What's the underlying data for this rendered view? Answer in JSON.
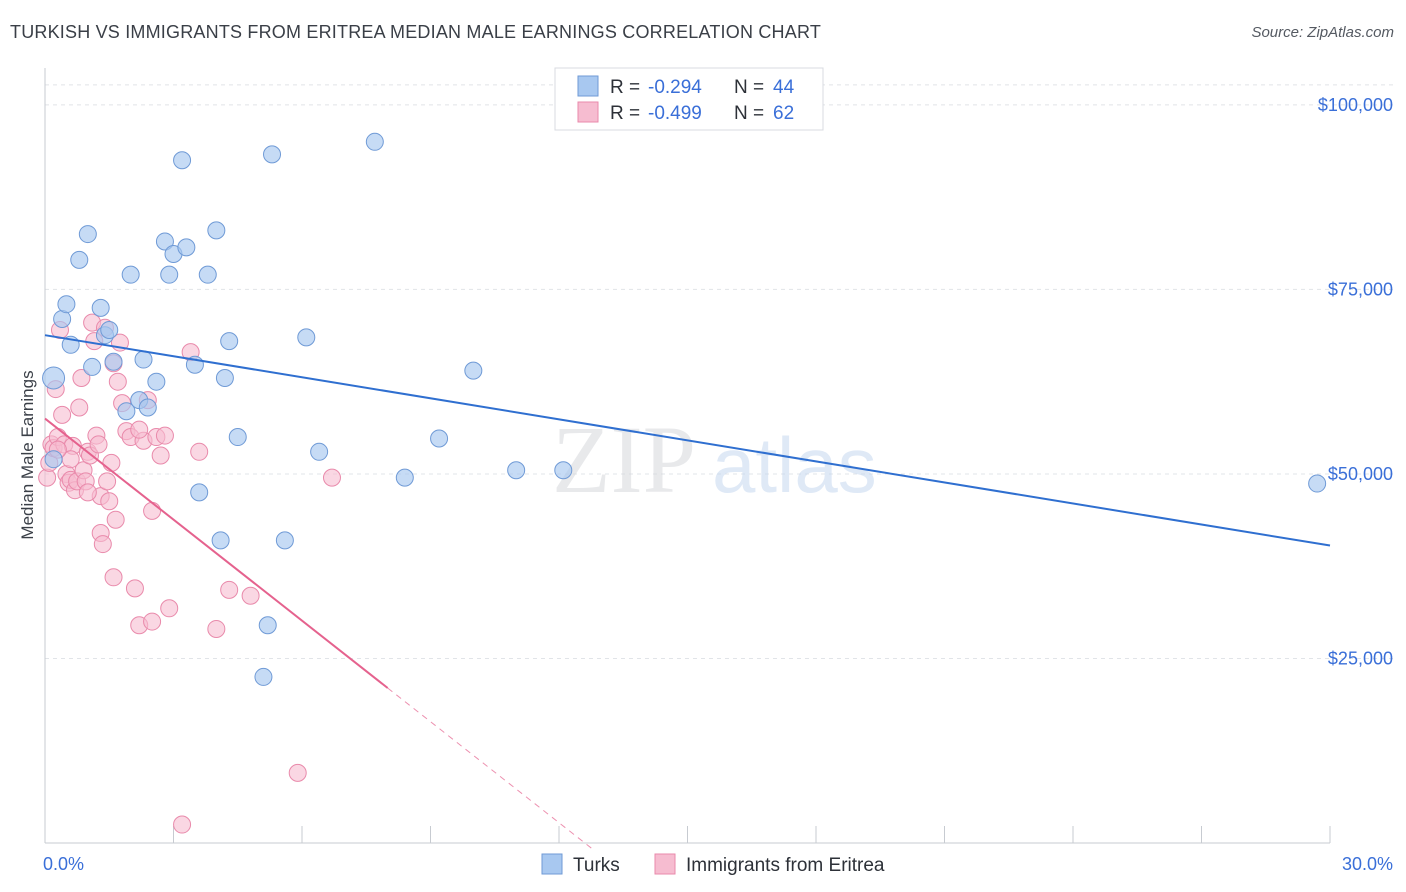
{
  "header": {
    "title": "TURKISH VS IMMIGRANTS FROM ERITREA MEDIAN MALE EARNINGS CORRELATION CHART",
    "source": "Source: ZipAtlas.com"
  },
  "watermark": {
    "zip": "ZIP",
    "atlas": "atlas"
  },
  "colors": {
    "turks_fill": "#a8c8f0",
    "turks_stroke": "#6f9ad6",
    "turks_line": "#2f6fd0",
    "eritrea_fill": "#f6bcd0",
    "eritrea_stroke": "#e98aab",
    "eritrea_line": "#e5628e",
    "grid": "#e1e4e8",
    "tick_label": "#3a6fd8"
  },
  "legend": {
    "rows": [
      {
        "r_label": "R =",
        "r_value": "-0.294",
        "n_label": "N =",
        "n_value": "44"
      },
      {
        "r_label": "R =",
        "r_value": "-0.499",
        "n_label": "N =",
        "n_value": "62"
      }
    ]
  },
  "chart_data": {
    "type": "scatter",
    "title": "TURKISH VS IMMIGRANTS FROM ERITREA MEDIAN MALE EARNINGS CORRELATION CHART",
    "xlabel": "",
    "ylabel": "Median Male Earnings",
    "xlim": [
      0,
      30
    ],
    "ylim": [
      0,
      105000
    ],
    "x_tick_labels": [
      "0.0%",
      "30.0%"
    ],
    "y_ticks": [
      25000,
      50000,
      75000,
      100000
    ],
    "y_tick_labels": [
      "$25,000",
      "$50,000",
      "$75,000",
      "$100,000"
    ],
    "grid": true,
    "series": [
      {
        "name": "Turks",
        "r": -0.294,
        "n": 44,
        "trend": {
          "x": [
            0,
            30
          ],
          "y": [
            68800,
            40300
          ]
        },
        "points": [
          [
            0.2,
            63000
          ],
          [
            0.2,
            52000
          ],
          [
            0.4,
            71000
          ],
          [
            0.5,
            73000
          ],
          [
            0.6,
            67500
          ],
          [
            0.8,
            79000
          ],
          [
            1.0,
            82500
          ],
          [
            1.1,
            64500
          ],
          [
            1.3,
            72500
          ],
          [
            1.4,
            68800
          ],
          [
            1.5,
            69500
          ],
          [
            1.6,
            65200
          ],
          [
            1.9,
            58500
          ],
          [
            2.0,
            77000
          ],
          [
            2.2,
            60000
          ],
          [
            2.3,
            65500
          ],
          [
            2.4,
            59000
          ],
          [
            2.6,
            62500
          ],
          [
            2.8,
            81500
          ],
          [
            2.9,
            77000
          ],
          [
            3.0,
            79800
          ],
          [
            3.2,
            92500
          ],
          [
            3.3,
            80700
          ],
          [
            3.5,
            64800
          ],
          [
            3.6,
            47500
          ],
          [
            3.8,
            77000
          ],
          [
            4.0,
            83000
          ],
          [
            4.1,
            41000
          ],
          [
            4.2,
            63000
          ],
          [
            4.3,
            68000
          ],
          [
            4.5,
            55000
          ],
          [
            5.1,
            22500
          ],
          [
            5.2,
            29500
          ],
          [
            5.3,
            93300
          ],
          [
            5.6,
            41000
          ],
          [
            6.1,
            68500
          ],
          [
            6.4,
            53000
          ],
          [
            7.7,
            95000
          ],
          [
            8.4,
            49500
          ],
          [
            9.2,
            54800
          ],
          [
            10.0,
            64000
          ],
          [
            11.0,
            50500
          ],
          [
            12.1,
            50500
          ],
          [
            29.7,
            48700
          ]
        ]
      },
      {
        "name": "Immigrants from Eritrea",
        "r": -0.499,
        "n": 62,
        "trend": {
          "x": [
            0,
            8
          ],
          "y": [
            57500,
            21000
          ]
        },
        "trend_ext": {
          "x": [
            8,
            12.8
          ],
          "y": [
            21000,
            -900
          ]
        },
        "points": [
          [
            0.05,
            49500
          ],
          [
            0.1,
            51500
          ],
          [
            0.15,
            54000
          ],
          [
            0.2,
            53500
          ],
          [
            0.25,
            61500
          ],
          [
            0.3,
            55000
          ],
          [
            0.35,
            69500
          ],
          [
            0.4,
            58000
          ],
          [
            0.45,
            54000
          ],
          [
            0.5,
            50000
          ],
          [
            0.55,
            48800
          ],
          [
            0.6,
            49200
          ],
          [
            0.65,
            53800
          ],
          [
            0.7,
            47800
          ],
          [
            0.75,
            49000
          ],
          [
            0.8,
            59000
          ],
          [
            0.85,
            63000
          ],
          [
            0.9,
            50500
          ],
          [
            0.95,
            49000
          ],
          [
            1.0,
            53000
          ],
          [
            1.05,
            52500
          ],
          [
            1.1,
            70500
          ],
          [
            1.15,
            68000
          ],
          [
            1.2,
            55200
          ],
          [
            1.25,
            54000
          ],
          [
            1.3,
            47000
          ],
          [
            1.3,
            42000
          ],
          [
            1.35,
            40500
          ],
          [
            1.4,
            69800
          ],
          [
            1.45,
            49000
          ],
          [
            1.5,
            46300
          ],
          [
            1.55,
            51500
          ],
          [
            1.6,
            65000
          ],
          [
            1.6,
            36000
          ],
          [
            1.65,
            43800
          ],
          [
            1.7,
            62500
          ],
          [
            1.75,
            67800
          ],
          [
            1.8,
            59600
          ],
          [
            1.9,
            55800
          ],
          [
            2.0,
            55000
          ],
          [
            2.1,
            34500
          ],
          [
            2.2,
            29500
          ],
          [
            2.3,
            54500
          ],
          [
            2.4,
            60000
          ],
          [
            2.5,
            45000
          ],
          [
            2.5,
            30000
          ],
          [
            2.6,
            55000
          ],
          [
            2.7,
            52500
          ],
          [
            2.8,
            55200
          ],
          [
            2.9,
            31800
          ],
          [
            3.2,
            2500
          ],
          [
            3.4,
            66500
          ],
          [
            3.6,
            53000
          ],
          [
            4.0,
            29000
          ],
          [
            4.3,
            34300
          ],
          [
            4.8,
            33500
          ],
          [
            5.9,
            9500
          ],
          [
            6.7,
            49500
          ],
          [
            0.6,
            52000
          ],
          [
            1.0,
            47500
          ],
          [
            0.3,
            53300
          ],
          [
            2.2,
            56000
          ]
        ]
      }
    ]
  },
  "bottom_legend": {
    "items": [
      "Turks",
      "Immigrants from Eritrea"
    ]
  }
}
